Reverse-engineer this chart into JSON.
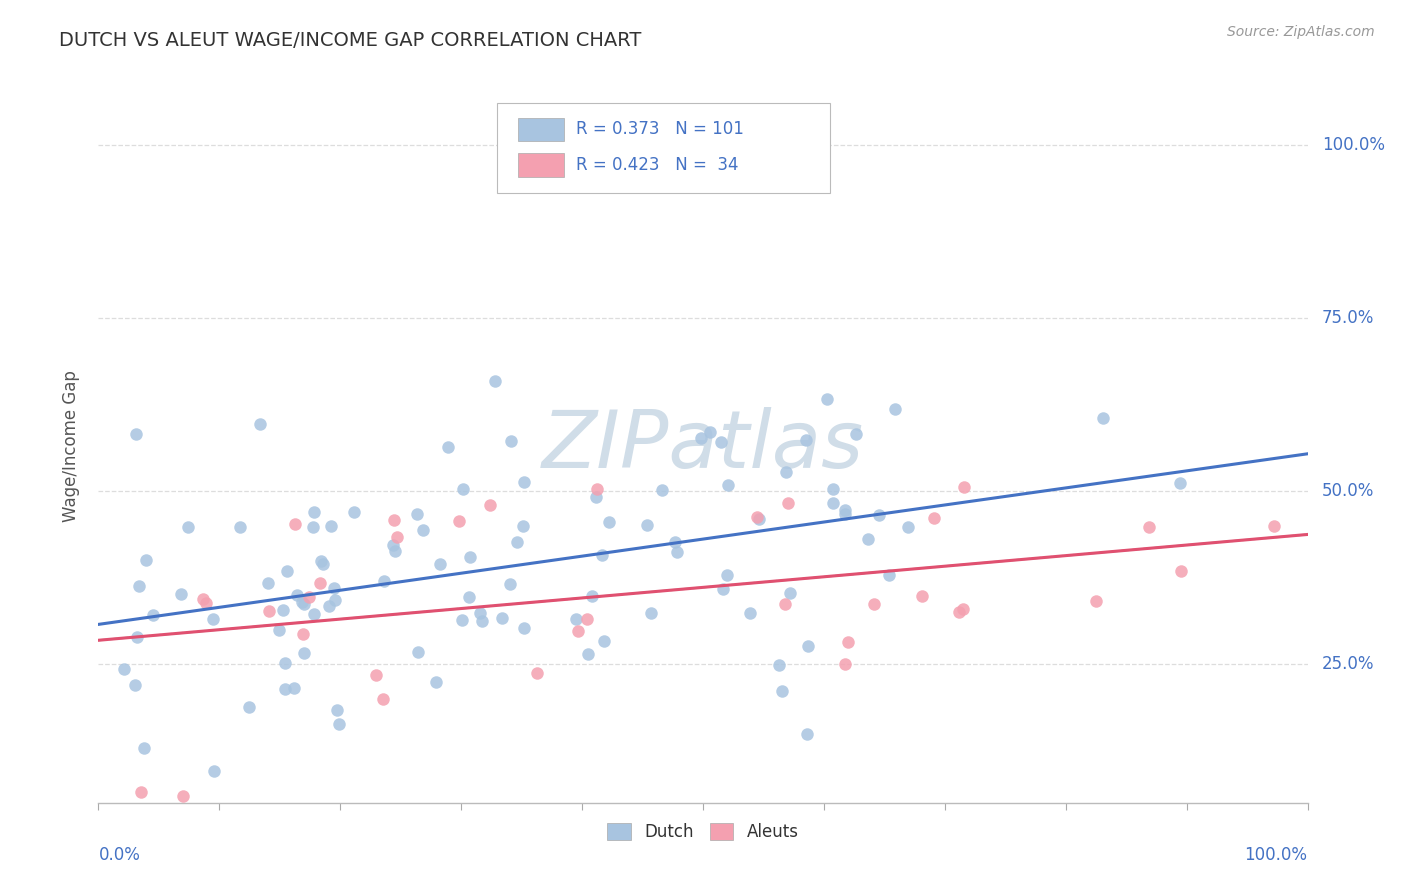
{
  "title": "DUTCH VS ALEUT WAGE/INCOME GAP CORRELATION CHART",
  "source": "Source: ZipAtlas.com",
  "ylabel": "Wage/Income Gap",
  "ytick_labels": [
    "25.0%",
    "50.0%",
    "75.0%",
    "100.0%"
  ],
  "ytick_positions": [
    0.25,
    0.5,
    0.75,
    1.0
  ],
  "xlim": [
    0.0,
    1.0
  ],
  "ylim": [
    0.05,
    1.08
  ],
  "dutch_color": "#a8c4e0",
  "aleut_color": "#f4a0b0",
  "dutch_R": 0.373,
  "dutch_N": 101,
  "aleut_R": 0.423,
  "aleut_N": 34,
  "watermark": "ZIPatlas",
  "watermark_color": "#d0dde8",
  "background_color": "#ffffff",
  "grid_color": "#dddddd",
  "tick_label_color": "#4472c4",
  "dutch_trend_color": "#4472c4",
  "aleut_trend_color": "#e05070",
  "dashed_trend_color": "#aaaaaa",
  "title_color": "#333333",
  "source_color": "#999999",
  "ylabel_color": "#555555",
  "legend_box_color": "#cccccc",
  "legend_text_color": "#4472c4"
}
